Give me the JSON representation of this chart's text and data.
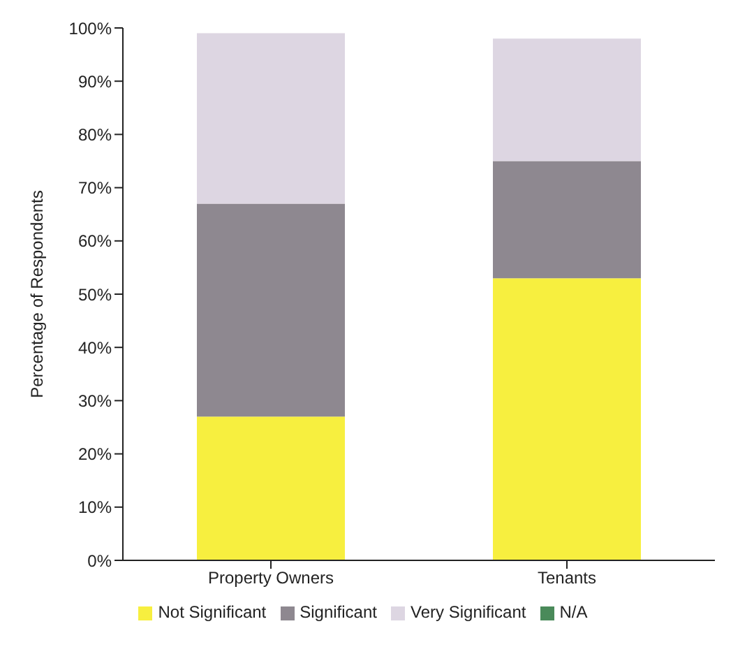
{
  "chart_data": {
    "type": "bar",
    "stacked": true,
    "ylabel": "Percentage of Respondents",
    "categories": [
      "Property Owners",
      "Tenants"
    ],
    "series": [
      {
        "name": "Not Significant",
        "color": "#f7ef3f",
        "values": [
          27,
          53
        ]
      },
      {
        "name": "Significant",
        "color": "#8e8890",
        "values": [
          40,
          22
        ]
      },
      {
        "name": "Very Significant",
        "color": "#ddd6e2",
        "values": [
          32,
          23
        ]
      },
      {
        "name": "N/A",
        "color": "#4a8a5a",
        "values": [
          0,
          0
        ]
      }
    ],
    "ylim": [
      0,
      100
    ],
    "yticks": [
      {
        "value": 0,
        "label": "0%"
      },
      {
        "value": 10,
        "label": "10%"
      },
      {
        "value": 20,
        "label": "20%"
      },
      {
        "value": 30,
        "label": "30%"
      },
      {
        "value": 40,
        "label": "40%"
      },
      {
        "value": 50,
        "label": "50%"
      },
      {
        "value": 60,
        "label": "60%"
      },
      {
        "value": 70,
        "label": "70%"
      },
      {
        "value": 80,
        "label": "80%"
      },
      {
        "value": 90,
        "label": "90%"
      },
      {
        "value": 100,
        "label": "100%"
      }
    ],
    "grid": false,
    "legend": "bottom"
  }
}
